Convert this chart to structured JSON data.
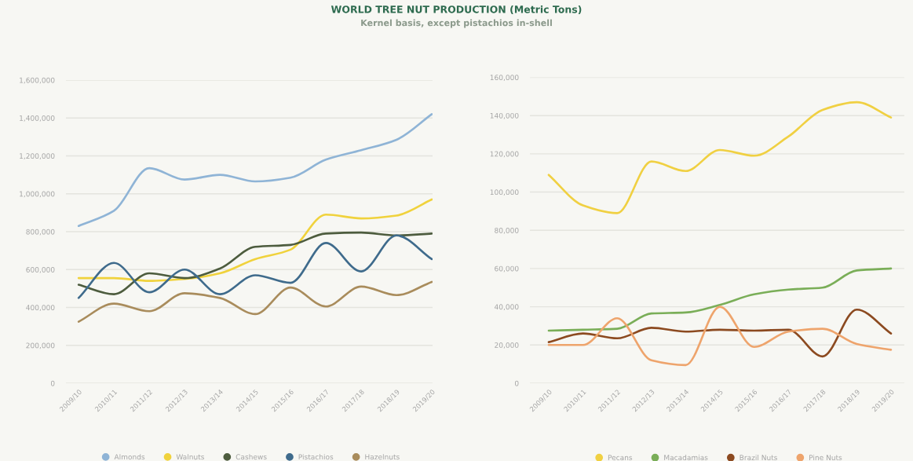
{
  "chart_data": [
    {
      "type": "line",
      "title": "WORLD TREE NUT PRODUCTION (Metric Tons)",
      "subtitle": "Kernel basis, except pistachios in-shell",
      "categories": [
        "2009/10",
        "2010/11",
        "2011/12",
        "2012/13",
        "2013/14",
        "2014/15",
        "2015/16",
        "2016/17",
        "2017/18",
        "2018/19",
        "2019/20"
      ],
      "series": [
        {
          "name": "Almonds",
          "color": "#8fb4d6",
          "values": [
            830000,
            910000,
            1135000,
            1075000,
            1100000,
            1065000,
            1085000,
            1180000,
            1230000,
            1285000,
            1420000
          ]
        },
        {
          "name": "Walnuts",
          "color": "#f0d23c",
          "values": [
            555000,
            555000,
            540000,
            550000,
            580000,
            655000,
            705000,
            890000,
            870000,
            885000,
            970000
          ]
        },
        {
          "name": "Cashews",
          "color": "#4d5c3e",
          "values": [
            520000,
            470000,
            580000,
            555000,
            605000,
            720000,
            730000,
            790000,
            795000,
            780000,
            790000
          ]
        },
        {
          "name": "Pistachios",
          "color": "#3f6b8c",
          "values": [
            450000,
            635000,
            480000,
            600000,
            470000,
            570000,
            530000,
            740000,
            590000,
            780000,
            655000
          ]
        },
        {
          "name": "Hazelnuts",
          "color": "#a98c5c",
          "values": [
            325000,
            420000,
            380000,
            475000,
            450000,
            365000,
            505000,
            405000,
            510000,
            465000,
            535000
          ]
        }
      ],
      "ylim": [
        0,
        1600000
      ],
      "yticks": [
        {
          "value": 0,
          "label": "0"
        },
        {
          "value": 200000,
          "label": "200,000"
        },
        {
          "value": 400000,
          "label": "400,000"
        },
        {
          "value": 600000,
          "label": "600,000"
        },
        {
          "value": 800000,
          "label": "800,000"
        },
        {
          "value": 1000000,
          "label": "1,000,000"
        },
        {
          "value": 1200000,
          "label": "1,200,000"
        },
        {
          "value": 1400000,
          "label": "1,400,000"
        },
        {
          "value": 1600000,
          "label": "1,600,000"
        }
      ],
      "grid": "y",
      "legend": "bottom"
    },
    {
      "type": "line",
      "categories": [
        "2009/10",
        "2010/11",
        "2011/12",
        "2012/13",
        "2013/14",
        "2014/15",
        "2015/16",
        "2016/17",
        "2017/18",
        "2018/19",
        "2019/20"
      ],
      "series": [
        {
          "name": "Pecans",
          "color": "#f0d042",
          "values": [
            109000,
            93000,
            89000,
            116000,
            111000,
            122000,
            119000,
            129000,
            143000,
            147000,
            139000
          ]
        },
        {
          "name": "Macadamias",
          "color": "#7aae58",
          "values": [
            27500,
            28000,
            28500,
            36500,
            37000,
            41000,
            46500,
            49000,
            50000,
            59000,
            60000
          ]
        },
        {
          "name": "Brazil Nuts",
          "color": "#8c4a20",
          "values": [
            21500,
            26000,
            23500,
            29000,
            27000,
            28000,
            27500,
            28000,
            14000,
            38500,
            26000
          ]
        },
        {
          "name": "Pine Nuts",
          "color": "#eea46c",
          "values": [
            20000,
            20000,
            34000,
            12000,
            9500,
            40000,
            19000,
            27000,
            28500,
            20500,
            17500
          ]
        }
      ],
      "ylim": [
        0,
        160000
      ],
      "yticks": [
        {
          "value": 0,
          "label": "0"
        },
        {
          "value": 20000,
          "label": "20,000"
        },
        {
          "value": 40000,
          "label": "40,000"
        },
        {
          "value": 60000,
          "label": "60,000"
        },
        {
          "value": 80000,
          "label": "80,000"
        },
        {
          "value": 100000,
          "label": "100,000"
        },
        {
          "value": 120000,
          "label": "120,000"
        },
        {
          "value": 140000,
          "label": "140,000"
        },
        {
          "value": 160000,
          "label": "160,000"
        }
      ],
      "grid": "y",
      "legend": "bottom"
    }
  ]
}
